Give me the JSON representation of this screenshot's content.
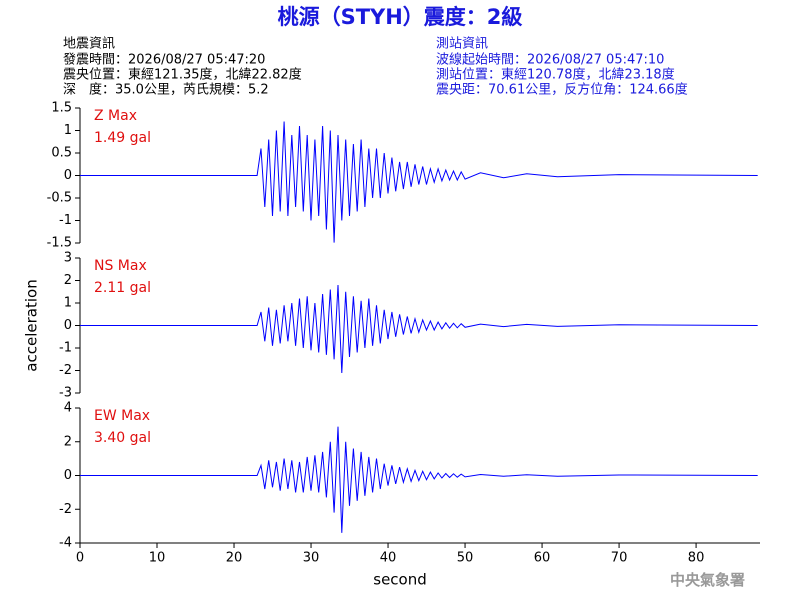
{
  "header": {
    "title": "桃源（STYH）震度：2級",
    "left_lines": [
      "地震資訊",
      "發震時間：2026/08/27 05:47:20",
      "震央位置：東經121.35度，北緯22.82度",
      "深　度：35.0公里，芮氏規模：5.2"
    ],
    "right_lines": [
      "測站資訊",
      "波線起始時間：2026/08/27 05:47:10",
      "測站位置：東經120.78度，北緯23.18度",
      "震央距：70.61公里，反方位角：124.66度"
    ],
    "footer": "中央氣象署"
  },
  "chart_data": [
    {
      "type": "line",
      "label": "Z Max",
      "max_label": "1.49 gal",
      "color": "#0000ff",
      "xlim": [
        0,
        88.3
      ],
      "ylim": [
        -1.5,
        1.5
      ],
      "yticks": [
        -1.5,
        -1,
        -0.5,
        0,
        0.5,
        1,
        1.5
      ],
      "x": [
        0,
        23,
        23.5,
        24,
        24.5,
        25,
        25.5,
        26,
        26.5,
        27,
        27.5,
        28,
        28.5,
        29,
        29.5,
        30,
        30.5,
        31,
        31.5,
        32,
        32.5,
        33,
        33.5,
        34,
        34.5,
        35,
        35.5,
        36,
        36.5,
        37,
        37.5,
        38,
        38.5,
        39,
        39.5,
        40,
        40.5,
        41,
        41.5,
        42,
        42.5,
        43,
        43.5,
        44,
        44.5,
        45,
        45.5,
        46,
        46.5,
        47,
        47.5,
        48,
        48.5,
        49,
        49.5,
        50,
        52,
        55,
        58,
        62,
        70,
        88
      ],
      "values": [
        0,
        0,
        0.6,
        -0.7,
        0.8,
        -0.9,
        1.0,
        -0.8,
        1.2,
        -0.9,
        0.9,
        -0.7,
        1.1,
        -0.8,
        0.9,
        -1.0,
        0.8,
        -0.9,
        1.1,
        -1.2,
        1.0,
        -1.49,
        0.9,
        -1.0,
        0.8,
        -0.9,
        0.7,
        -0.8,
        0.8,
        -0.7,
        0.6,
        -0.5,
        0.6,
        -0.5,
        0.5,
        -0.4,
        0.4,
        -0.35,
        0.3,
        -0.3,
        0.3,
        -0.25,
        0.25,
        -0.2,
        0.2,
        -0.2,
        0.15,
        -0.15,
        0.15,
        -0.12,
        0.12,
        -0.1,
        0.1,
        -0.1,
        0.08,
        -0.08,
        0.06,
        -0.05,
        0.04,
        -0.03,
        0.02,
        0
      ]
    },
    {
      "type": "line",
      "label": "NS Max",
      "max_label": "2.11 gal",
      "color": "#0000ff",
      "ylabel": "acceleration",
      "xlim": [
        0,
        88.3
      ],
      "ylim": [
        -3,
        3
      ],
      "yticks": [
        -3,
        -2,
        -1,
        0,
        1,
        2,
        3
      ],
      "x": [
        0,
        23,
        23.5,
        24,
        24.5,
        25,
        25.5,
        26,
        26.5,
        27,
        27.5,
        28,
        28.5,
        29,
        29.5,
        30,
        30.5,
        31,
        31.5,
        32,
        32.5,
        33,
        33.5,
        34,
        34.5,
        35,
        35.5,
        36,
        36.5,
        37,
        37.5,
        38,
        38.5,
        39,
        39.5,
        40,
        40.5,
        41,
        41.5,
        42,
        42.5,
        43,
        43.5,
        44,
        44.5,
        45,
        45.5,
        46,
        46.5,
        47,
        47.5,
        48,
        48.5,
        49,
        49.5,
        50,
        52,
        55,
        58,
        62,
        70,
        88
      ],
      "values": [
        0,
        0,
        0.6,
        -0.7,
        0.8,
        -0.9,
        0.7,
        -0.8,
        0.9,
        -0.7,
        1.0,
        -0.9,
        1.2,
        -1.0,
        1.3,
        -1.1,
        1.0,
        -1.2,
        1.4,
        -1.3,
        1.6,
        -1.5,
        1.8,
        -2.11,
        1.5,
        -1.4,
        1.3,
        -1.2,
        1.1,
        -1.0,
        1.2,
        -0.9,
        0.9,
        -0.8,
        0.7,
        -0.6,
        0.6,
        -0.5,
        0.5,
        -0.4,
        0.4,
        -0.35,
        0.3,
        -0.3,
        0.25,
        -0.2,
        0.2,
        -0.2,
        0.15,
        -0.15,
        0.12,
        -0.12,
        0.1,
        -0.1,
        0.08,
        -0.08,
        0.06,
        -0.05,
        0.05,
        -0.04,
        0.03,
        0
      ]
    },
    {
      "type": "line",
      "label": "EW Max",
      "max_label": "3.40 gal",
      "color": "#0000ff",
      "xlabel": "second",
      "xlim": [
        0,
        88.3
      ],
      "ylim": [
        -4,
        4
      ],
      "yticks": [
        -4,
        -2,
        0,
        2,
        4
      ],
      "xticks": [
        0,
        10,
        20,
        30,
        40,
        50,
        60,
        70,
        80
      ],
      "x": [
        0,
        23,
        23.5,
        24,
        24.5,
        25,
        25.5,
        26,
        26.5,
        27,
        27.5,
        28,
        28.5,
        29,
        29.5,
        30,
        30.5,
        31,
        31.5,
        32,
        32.5,
        33,
        33.5,
        34,
        34.5,
        35,
        35.5,
        36,
        36.5,
        37,
        37.5,
        38,
        38.5,
        39,
        39.5,
        40,
        40.5,
        41,
        41.5,
        42,
        42.5,
        43,
        43.5,
        44,
        44.5,
        45,
        45.5,
        46,
        46.5,
        47,
        47.5,
        48,
        48.5,
        49,
        49.5,
        50,
        52,
        55,
        58,
        62,
        70,
        88
      ],
      "values": [
        0,
        0,
        0.6,
        -0.8,
        0.9,
        -0.7,
        0.8,
        -0.9,
        1.0,
        -0.8,
        0.9,
        -1.0,
        0.8,
        -1.0,
        1.1,
        -0.9,
        1.2,
        -1.0,
        1.4,
        -1.3,
        2.0,
        -2.2,
        2.9,
        -3.4,
        2.0,
        -1.8,
        1.6,
        -1.5,
        1.4,
        -1.2,
        1.1,
        -1.0,
        1.0,
        -0.8,
        0.7,
        -0.6,
        0.6,
        -0.5,
        0.5,
        -0.4,
        0.4,
        -0.35,
        0.3,
        -0.3,
        0.25,
        -0.25,
        0.2,
        -0.2,
        0.15,
        -0.15,
        0.12,
        -0.12,
        0.1,
        -0.1,
        0.08,
        -0.08,
        0.06,
        -0.05,
        0.05,
        -0.04,
        0.03,
        0
      ]
    }
  ]
}
